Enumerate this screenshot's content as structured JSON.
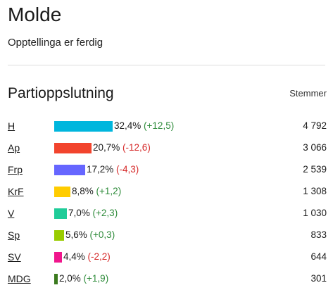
{
  "header": {
    "title": "Molde",
    "status": "Opptellinga er ferdig"
  },
  "section": {
    "title": "Partioppslutning",
    "votes_header": "Stemmer"
  },
  "chart_data": {
    "type": "bar",
    "title": "Partioppslutning",
    "categories": [
      "H",
      "Ap",
      "Frp",
      "KrF",
      "V",
      "Sp",
      "SV",
      "MDG"
    ],
    "series": [
      {
        "values": [
          32.4,
          20.7,
          17.2,
          8.8,
          7.0,
          5.6,
          4.4,
          2.0
        ]
      }
    ],
    "rows": [
      {
        "party": "H",
        "pct": 32.4,
        "pct_label": "32,4%",
        "change": 12.5,
        "change_label": "(+12,5)",
        "votes": "4 792",
        "color": "#00b6dd"
      },
      {
        "party": "Ap",
        "pct": 20.7,
        "pct_label": "20,7%",
        "change": -12.6,
        "change_label": "(-12,6)",
        "votes": "3 066",
        "color": "#f2442d"
      },
      {
        "party": "Frp",
        "pct": 17.2,
        "pct_label": "17,2%",
        "change": -4.3,
        "change_label": "(-4,3)",
        "votes": "2 539",
        "color": "#6666ff"
      },
      {
        "party": "KrF",
        "pct": 8.8,
        "pct_label": "8,8%",
        "change": 1.2,
        "change_label": "(+1,2)",
        "votes": "1 308",
        "color": "#ffcc00"
      },
      {
        "party": "V",
        "pct": 7.0,
        "pct_label": "7,0%",
        "change": 2.3,
        "change_label": "(+2,3)",
        "votes": "1 030",
        "color": "#1fcc99"
      },
      {
        "party": "Sp",
        "pct": 5.6,
        "pct_label": "5,6%",
        "change": 0.3,
        "change_label": "(+0,3)",
        "votes": "833",
        "color": "#99cc00"
      },
      {
        "party": "SV",
        "pct": 4.4,
        "pct_label": "4,4%",
        "change": -2.2,
        "change_label": "(-2,2)",
        "votes": "644",
        "color": "#f0168c"
      },
      {
        "party": "MDG",
        "pct": 2.0,
        "pct_label": "2,0%",
        "change": 1.9,
        "change_label": "(+1,9)",
        "votes": "301",
        "color": "#3b7a1e"
      }
    ],
    "xlim": [
      0,
      32.4
    ],
    "grid": false,
    "legend": "none"
  }
}
